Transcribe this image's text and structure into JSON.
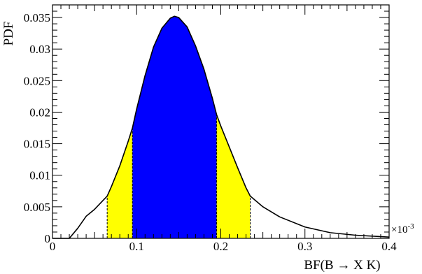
{
  "chart_data": {
    "type": "area",
    "title": "",
    "xlabel": "BF(B → X K)",
    "ylabel": "PDF",
    "x_scale_label": "×10",
    "x_scale_exponent": "-3",
    "xlim": [
      0,
      0.4
    ],
    "ylim": [
      0,
      0.037
    ],
    "x_ticks": [
      "0",
      "0.1",
      "0.2",
      "0.3",
      "0.4"
    ],
    "x_tick_values": [
      0,
      0.1,
      0.2,
      0.3,
      0.4
    ],
    "y_ticks": [
      "0",
      "0.005",
      "0.01",
      "0.015",
      "0.02",
      "0.025",
      "0.03",
      "0.035"
    ],
    "y_tick_values": [
      0,
      0.005,
      0.01,
      0.015,
      0.02,
      0.025,
      0.03,
      0.035
    ],
    "grid": false,
    "legend": "none",
    "curve": {
      "x": [
        0.0,
        0.02,
        0.03,
        0.04,
        0.05,
        0.06,
        0.065,
        0.07,
        0.08,
        0.09,
        0.095,
        0.1,
        0.11,
        0.12,
        0.13,
        0.14,
        0.145,
        0.15,
        0.16,
        0.17,
        0.18,
        0.19,
        0.195,
        0.2,
        0.21,
        0.22,
        0.23,
        0.235,
        0.25,
        0.27,
        0.3,
        0.33,
        0.36,
        0.4
      ],
      "y": [
        0.0,
        0.0,
        0.0016,
        0.0035,
        0.0046,
        0.006,
        0.0067,
        0.0082,
        0.0115,
        0.0154,
        0.0175,
        0.0205,
        0.0258,
        0.0303,
        0.0333,
        0.0349,
        0.0352,
        0.035,
        0.0335,
        0.0305,
        0.0268,
        0.0222,
        0.0196,
        0.0178,
        0.0145,
        0.0112,
        0.008,
        0.0067,
        0.005,
        0.0034,
        0.0018,
        0.0009,
        0.0005,
        0.0002
      ]
    },
    "regions": [
      {
        "x_range": [
          0.065,
          0.095
        ],
        "color": "#ffff00"
      },
      {
        "x_range": [
          0.095,
          0.195
        ],
        "color": "#0000ff"
      },
      {
        "x_range": [
          0.195,
          0.235
        ],
        "color": "#ffff00"
      }
    ],
    "boundary_lines": [
      0.065,
      0.095,
      0.195,
      0.235
    ]
  }
}
